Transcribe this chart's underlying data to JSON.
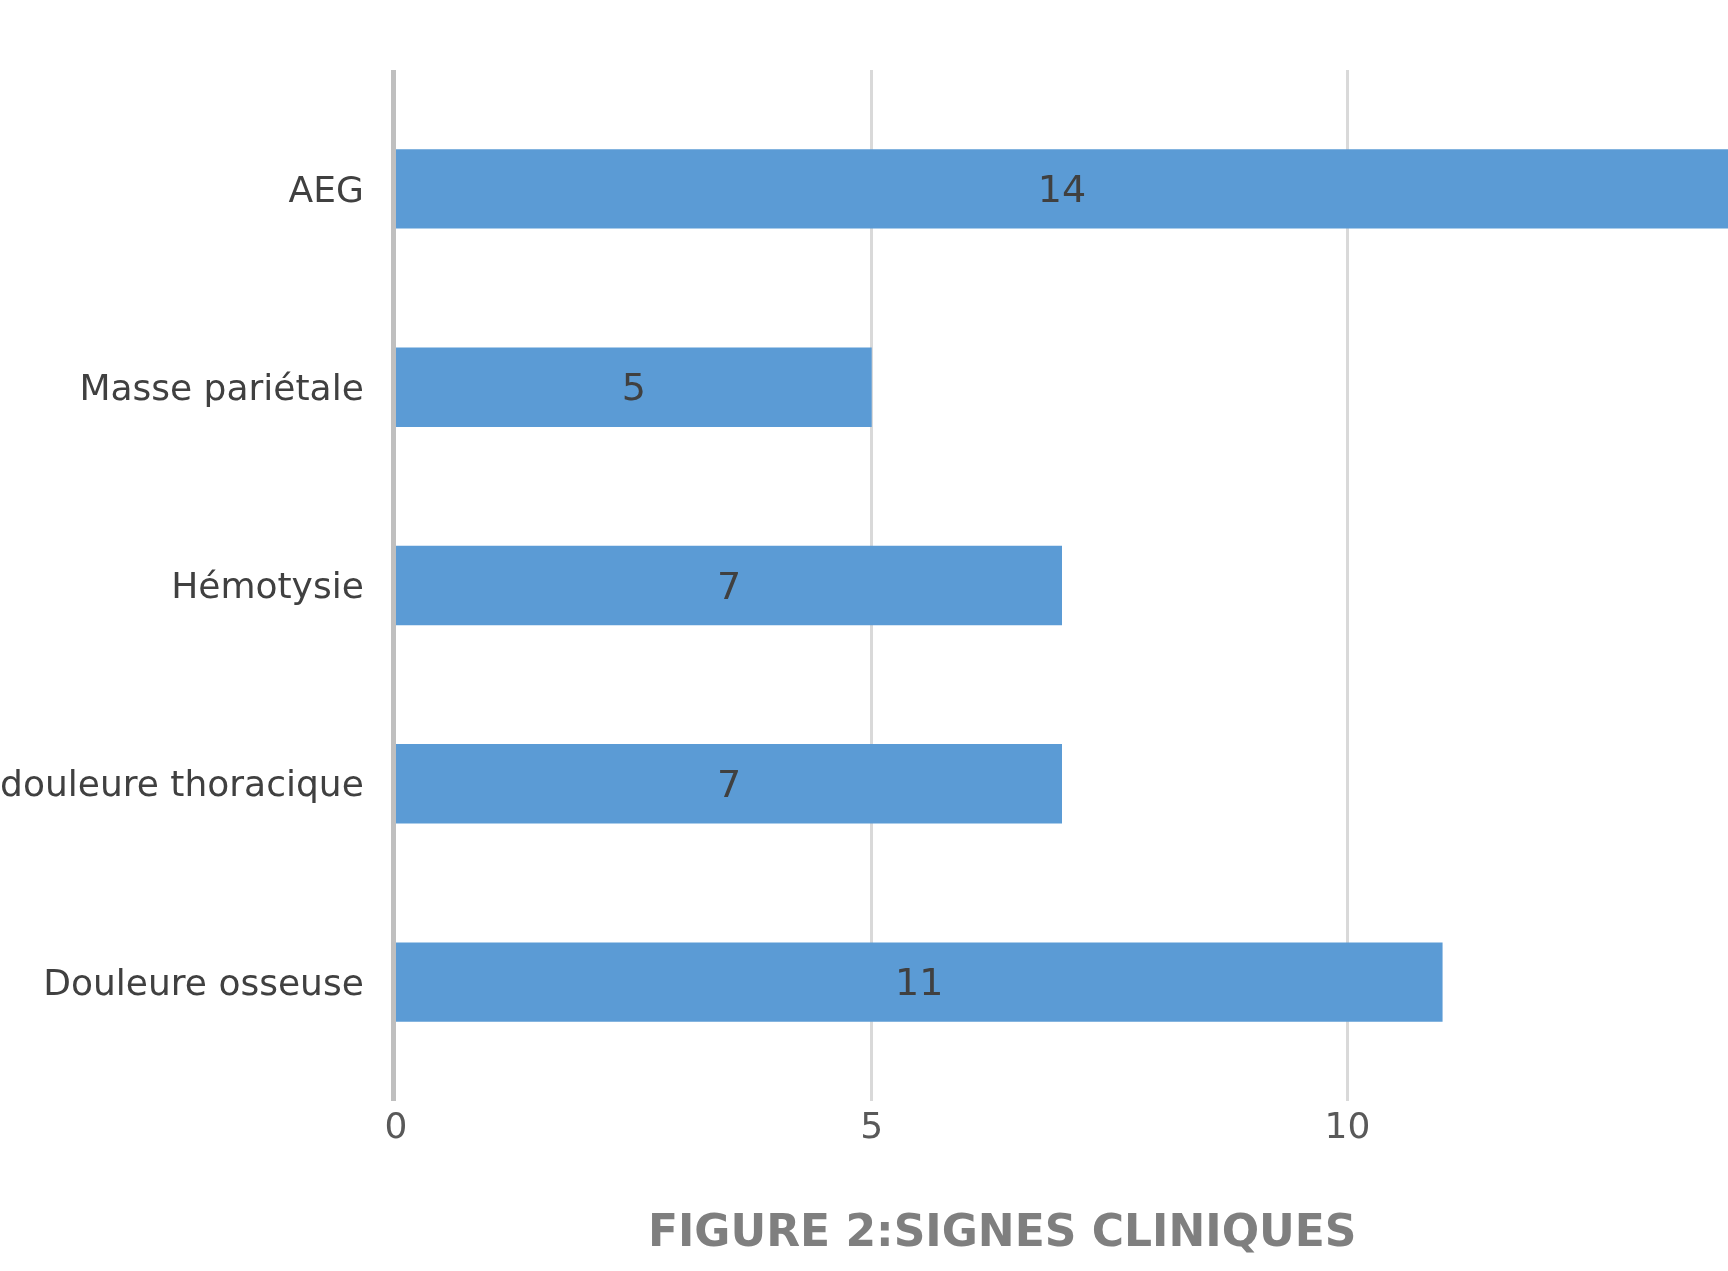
{
  "chart_data": {
    "type": "bar",
    "orientation": "horizontal",
    "title": "FIGURE 2:SIGNES CLINIQUES",
    "categories": [
      "AEG",
      "Masse pariétale",
      "Hémotysie",
      "douleure thoracique",
      "Douleure osseuse"
    ],
    "values": [
      14,
      5,
      7,
      7,
      11
    ],
    "color": "#5b9bd5",
    "xlim": [
      0,
      14
    ],
    "xticks": [
      0,
      5,
      10
    ],
    "grid": "x",
    "data_labels": true
  }
}
